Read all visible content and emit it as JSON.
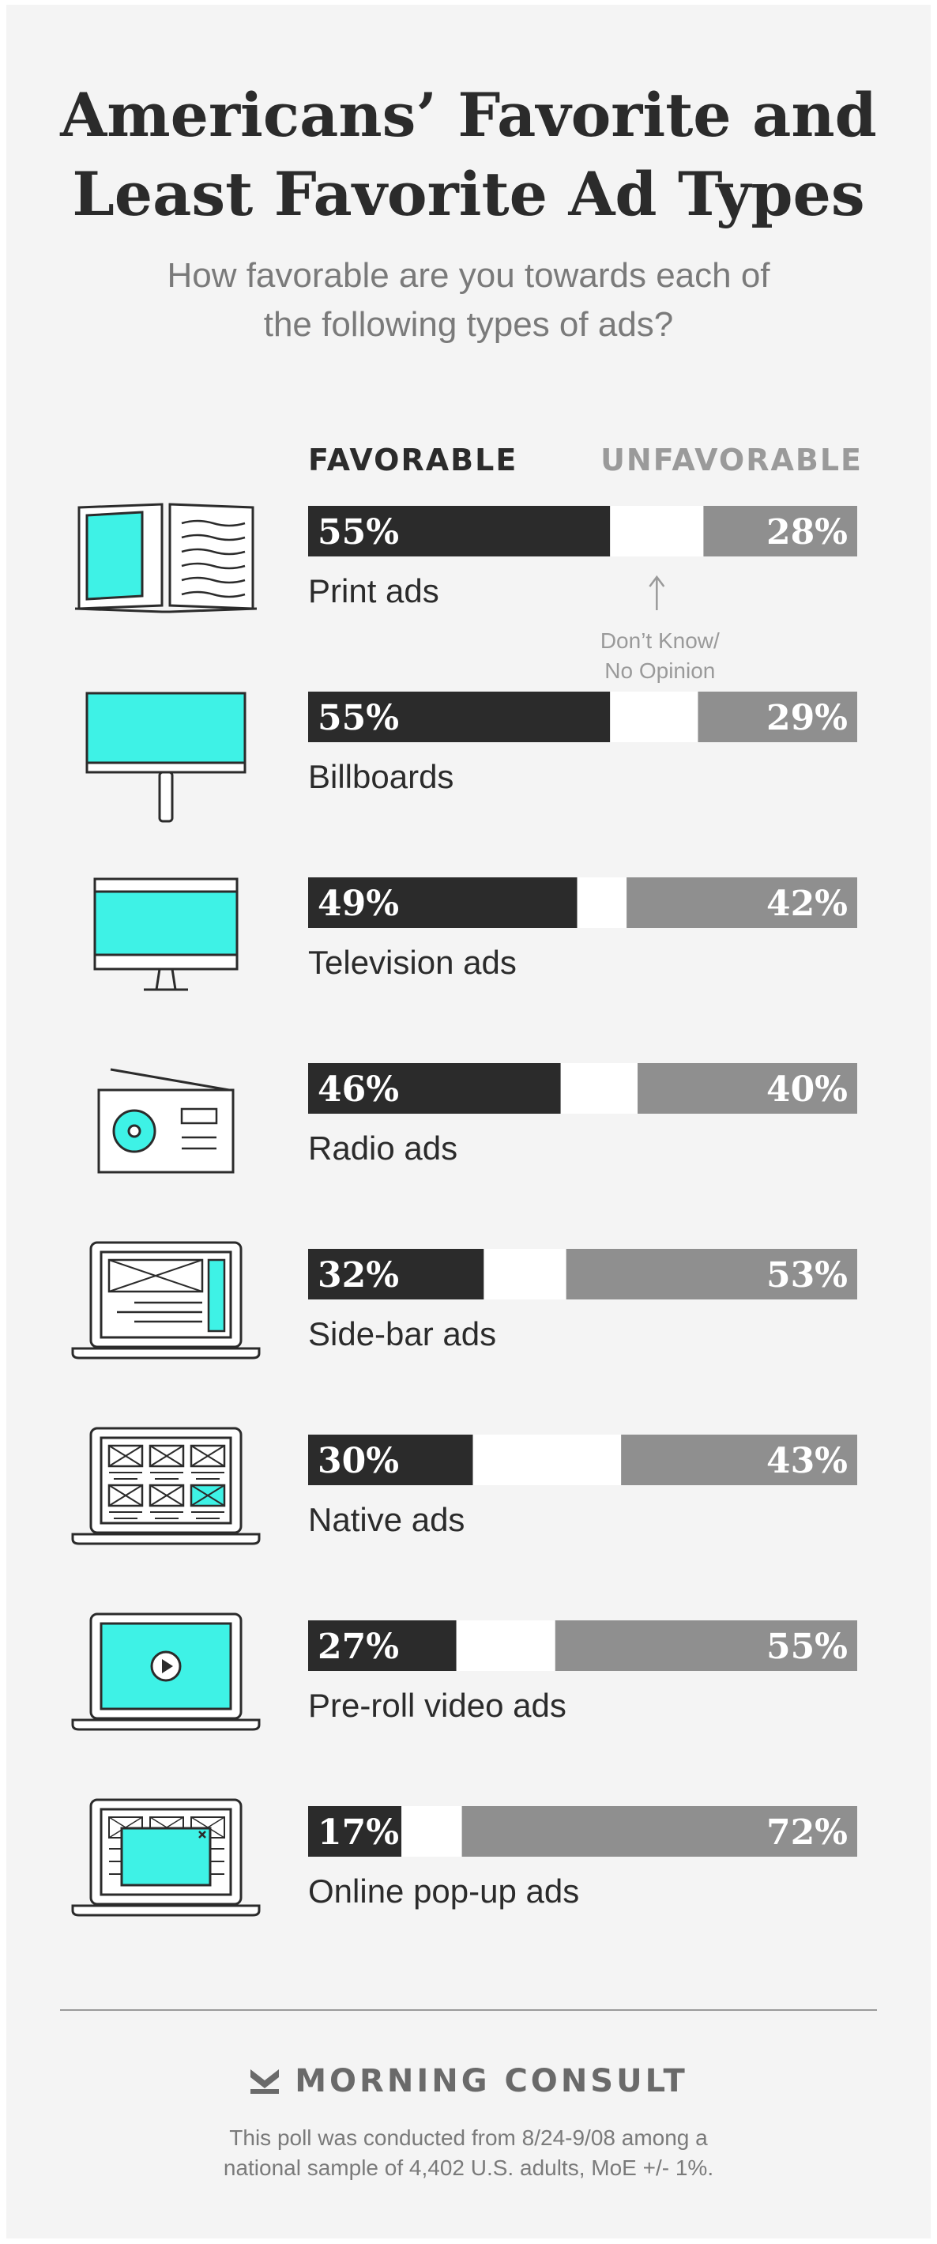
{
  "header": {
    "title_lines": [
      "Americans’ Favorite and",
      "Least Favorite Ad Types"
    ],
    "subtitle_lines": [
      "How favorable are you towards each of",
      "the following types of ads?"
    ]
  },
  "legend": {
    "favorable": "FAVORABLE",
    "unfavorable": "UNFAVORABLE"
  },
  "annotation_lines": [
    "Don’t Know/",
    "No Opinion"
  ],
  "colors": {
    "favorable": "#2b2b2b",
    "dont_know": "#ffffff",
    "unfavorable": "#8f8f8f",
    "icon_accent": "#3ef2e6",
    "icon_stroke": "#2b2b2b",
    "background": "#f4f4f4"
  },
  "chart_data": {
    "type": "bar",
    "orientation": "horizontal",
    "stacked": true,
    "categories": [
      "Print ads",
      "Billboards",
      "Television ads",
      "Radio ads",
      "Side-bar ads",
      "Native ads",
      "Pre-roll video ads",
      "Online pop-up ads"
    ],
    "icons": [
      "open-book-icon",
      "billboard-icon",
      "television-icon",
      "radio-icon",
      "laptop-sidebar-icon",
      "laptop-grid-icon",
      "laptop-video-icon",
      "laptop-popup-icon"
    ],
    "series": [
      {
        "name": "FAVORABLE",
        "values": [
          55,
          55,
          49,
          46,
          32,
          30,
          27,
          17
        ]
      },
      {
        "name": "Don’t Know/ No Opinion",
        "values": [
          17,
          16,
          9,
          14,
          15,
          27,
          18,
          11
        ]
      },
      {
        "name": "UNFAVORABLE",
        "values": [
          28,
          29,
          42,
          40,
          53,
          43,
          55,
          72
        ]
      }
    ],
    "labels": {
      "favorable": [
        "55%",
        "55%",
        "49%",
        "46%",
        "32%",
        "30%",
        "27%",
        "17%"
      ],
      "unfavorable": [
        "28%",
        "29%",
        "42%",
        "40%",
        "53%",
        "43%",
        "55%",
        "72%"
      ]
    },
    "xlim": [
      0,
      100
    ]
  },
  "brand": "MORNING CONSULT",
  "footnote_lines": [
    "This poll was conducted from 8/24-9/08 among a",
    "national sample of 4,402 U.S. adults, MoE +/- 1%."
  ]
}
